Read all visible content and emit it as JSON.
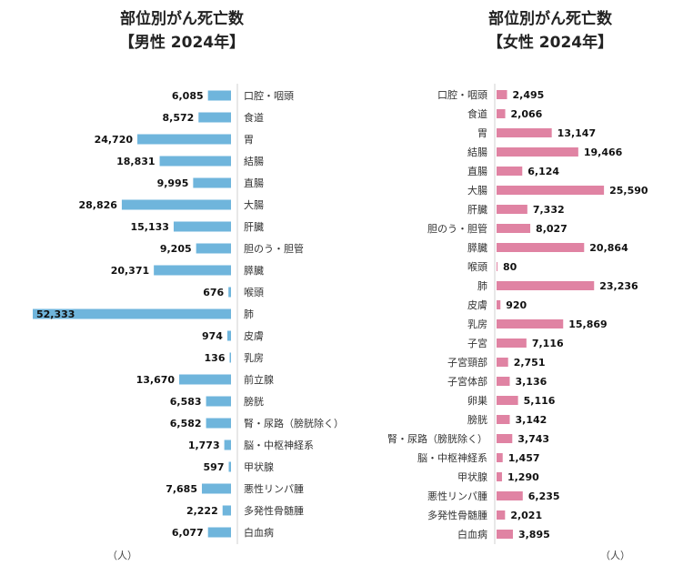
{
  "male": {
    "title_line1": "部位別がん死亡数",
    "title_line2": "【男性 2024年】",
    "unit": "（人）",
    "color": "#6fb5dc"
  },
  "female": {
    "title_line1": "部位別がん死亡数",
    "title_line2": "【女性 2024年】",
    "unit": "（人）",
    "color": "#e083a3"
  },
  "chart_data": [
    {
      "type": "bar",
      "orientation": "horizontal",
      "title": "部位別がん死亡数【男性 2024年】",
      "unit": "（人）",
      "categories": [
        "口腔・咽頭",
        "食道",
        "胃",
        "結腸",
        "直腸",
        "大腸",
        "肝臓",
        "胆のう・胆管",
        "膵臓",
        "喉頭",
        "肺",
        "皮膚",
        "乳房",
        "前立腺",
        "膀胱",
        "腎・尿路（膀胱除く）",
        "脳・中枢神経系",
        "甲状腺",
        "悪性リンパ腫",
        "多発性骨髄腫",
        "白血病"
      ],
      "values": [
        6085,
        8572,
        24720,
        18831,
        9995,
        28826,
        15133,
        9205,
        20371,
        676,
        52333,
        974,
        136,
        13670,
        6583,
        6582,
        1773,
        597,
        7685,
        2222,
        6077
      ],
      "value_labels": [
        "6,085",
        "8,572",
        "24,720",
        "18,831",
        "9,995",
        "28,826",
        "15,133",
        "9,205",
        "20,371",
        "676",
        "52,333",
        "974",
        "136",
        "13,670",
        "6,583",
        "6,582",
        "1,773",
        "597",
        "7,685",
        "2,222",
        "6,077"
      ],
      "xlim": [
        0,
        52333
      ],
      "grid": false
    },
    {
      "type": "bar",
      "orientation": "horizontal",
      "title": "部位別がん死亡数【女性 2024年】",
      "unit": "（人）",
      "categories": [
        "口腔・咽頭",
        "食道",
        "胃",
        "結腸",
        "直腸",
        "大腸",
        "肝臓",
        "胆のう・胆管",
        "膵臓",
        "喉頭",
        "肺",
        "皮膚",
        "乳房",
        "子宮",
        "子宮頸部",
        "子宮体部",
        "卵巣",
        "膀胱",
        "腎・尿路（膀胱除く）",
        "脳・中枢神経系",
        "甲状腺",
        "悪性リンパ腫",
        "多発性骨髄腫",
        "白血病"
      ],
      "values": [
        2495,
        2066,
        13147,
        19466,
        6124,
        25590,
        7332,
        8027,
        20864,
        80,
        23236,
        920,
        15869,
        7116,
        2751,
        3136,
        5116,
        3142,
        3743,
        1457,
        1290,
        6235,
        2021,
        3895
      ],
      "value_labels": [
        "2,495",
        "2,066",
        "13,147",
        "19,466",
        "6,124",
        "25,590",
        "7,332",
        "8,027",
        "20,864",
        "80",
        "23,236",
        "920",
        "15,869",
        "7,116",
        "2,751",
        "3,136",
        "5,116",
        "3,142",
        "3,743",
        "1,457",
        "1,290",
        "6,235",
        "2,021",
        "3,895"
      ],
      "xlim": [
        0,
        26000
      ],
      "grid": false
    }
  ]
}
